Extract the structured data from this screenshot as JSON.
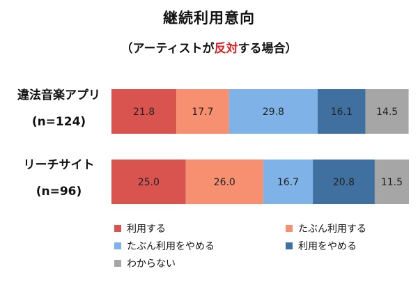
{
  "chart_data": {
    "type": "bar",
    "orientation": "horizontal",
    "stacked": true,
    "title": "継続利用意向",
    "subtitle_parts": [
      "（アーティストが",
      "反対",
      "する場合）"
    ],
    "categories": [
      {
        "name": "違法音楽アプリ",
        "count": "(n=124)"
      },
      {
        "name": "リーチサイト",
        "count": "(n=96)"
      }
    ],
    "xlim": [
      0,
      100
    ],
    "series": [
      {
        "name": "利用する",
        "color": "#d9534f",
        "values": [
          21.8,
          25.0
        ],
        "labels": [
          "21.8",
          "25.0"
        ]
      },
      {
        "name": "たぶん利用する",
        "color": "#f79070",
        "values": [
          17.7,
          26.0
        ],
        "labels": [
          "17.7",
          "26.0"
        ]
      },
      {
        "name": "たぶん利用をやめる",
        "color": "#7fb2e6",
        "values": [
          29.8,
          16.7
        ],
        "labels": [
          "29.8",
          "16.7"
        ]
      },
      {
        "name": "利用をやめる",
        "color": "#3f70a0",
        "values": [
          16.1,
          20.8
        ],
        "labels": [
          "16.1",
          "20.8"
        ]
      },
      {
        "name": "わからない",
        "color": "#a6a6a6",
        "values": [
          14.5,
          11.5
        ],
        "labels": [
          "14.5",
          "11.5"
        ]
      }
    ],
    "grid": false,
    "legend_position": "bottom"
  }
}
